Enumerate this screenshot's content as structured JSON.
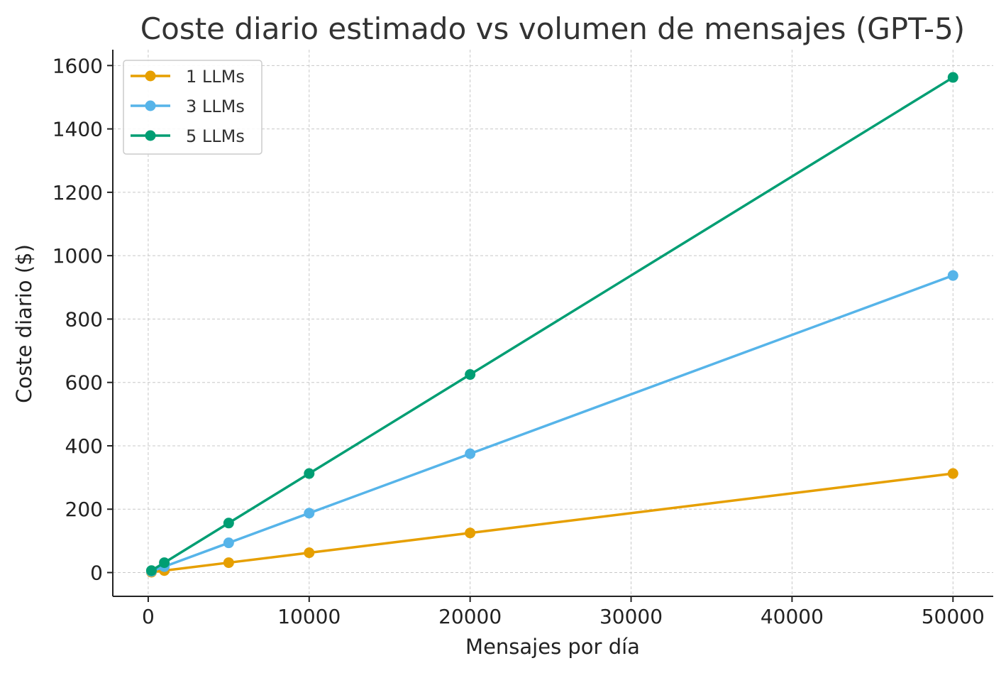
{
  "chart_data": {
    "type": "line",
    "title": "Coste diario estimado vs volumen de mensajes (GPT-5)",
    "xlabel": "Mensajes por día",
    "ylabel": "Coste diario ($)",
    "x": [
      200,
      1000,
      5000,
      10000,
      20000,
      50000
    ],
    "xlim": [
      -2200,
      52500
    ],
    "ylim": [
      -75,
      1650
    ],
    "xticks": [
      0,
      10000,
      20000,
      30000,
      40000,
      50000
    ],
    "yticks": [
      0,
      200,
      400,
      600,
      800,
      1000,
      1200,
      1400,
      1600
    ],
    "xtick_labels": [
      "0",
      "10000",
      "20000",
      "30000",
      "40000",
      "50000"
    ],
    "ytick_labels": [
      "0",
      "200",
      "400",
      "600",
      "800",
      "1000",
      "1200",
      "1400",
      "1600"
    ],
    "grid": true,
    "legend_position": "top-left",
    "series": [
      {
        "name": "1 LLMs",
        "color": "#E69F00",
        "values": [
          1.25,
          6.25,
          31.25,
          62.5,
          125,
          312.5
        ]
      },
      {
        "name": "3 LLMs",
        "color": "#56B4E9",
        "values": [
          3.75,
          18.75,
          93.75,
          187.5,
          375,
          937.5
        ]
      },
      {
        "name": "5 LLMs",
        "color": "#009E73",
        "values": [
          6.25,
          31.25,
          156.25,
          312.5,
          625,
          1562.5
        ]
      }
    ]
  }
}
